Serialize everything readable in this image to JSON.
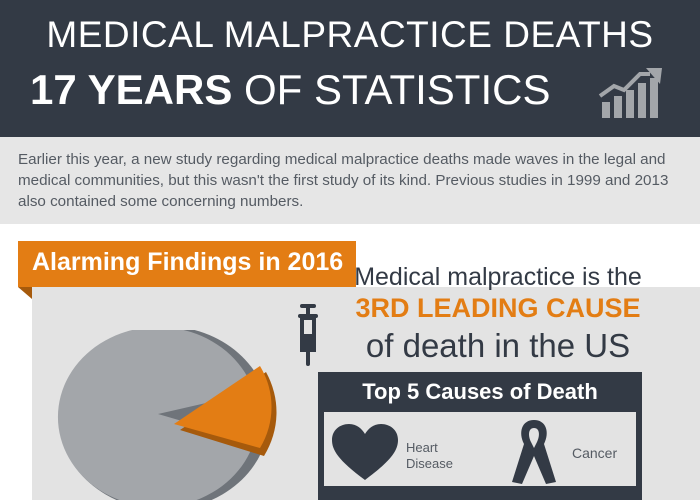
{
  "header": {
    "title_line1": "MEDICAL MALPRACTICE DEATHS",
    "title_line2_bold": "17 YEARS",
    "title_line2_rest": " OF STATISTICS",
    "icon": "rising-bar-chart-icon"
  },
  "intro": {
    "text": "Earlier this year, a new study regarding medical malpractice deaths made waves in the legal and medical communities, but this wasn't the first study of its kind. Previous studies in 1999 and 2013 also contained some concerning numbers."
  },
  "findings": {
    "banner_label": "Alarming Findings in 2016",
    "claim_line1": "Medical malpractice is the",
    "claim_highlight": "3RD LEADING CAUSE",
    "claim_line3": "of death in the US",
    "pie_icon": "pie-chart-icon",
    "syringe_icon": "syringe-icon"
  },
  "causes": {
    "title": "Top 5 Causes of Death",
    "items": [
      {
        "label": "Heart Disease",
        "icon": "heart-icon"
      },
      {
        "label": "Cancer",
        "icon": "awareness-ribbon-icon"
      }
    ]
  },
  "colors": {
    "header_bg": "#333a45",
    "accent_orange": "#e37d14",
    "intro_bg": "#e6e6e6",
    "panel_bg": "#e3e3e3",
    "pie_gray": "#a3a6aa",
    "text_gray": "#555b63"
  }
}
